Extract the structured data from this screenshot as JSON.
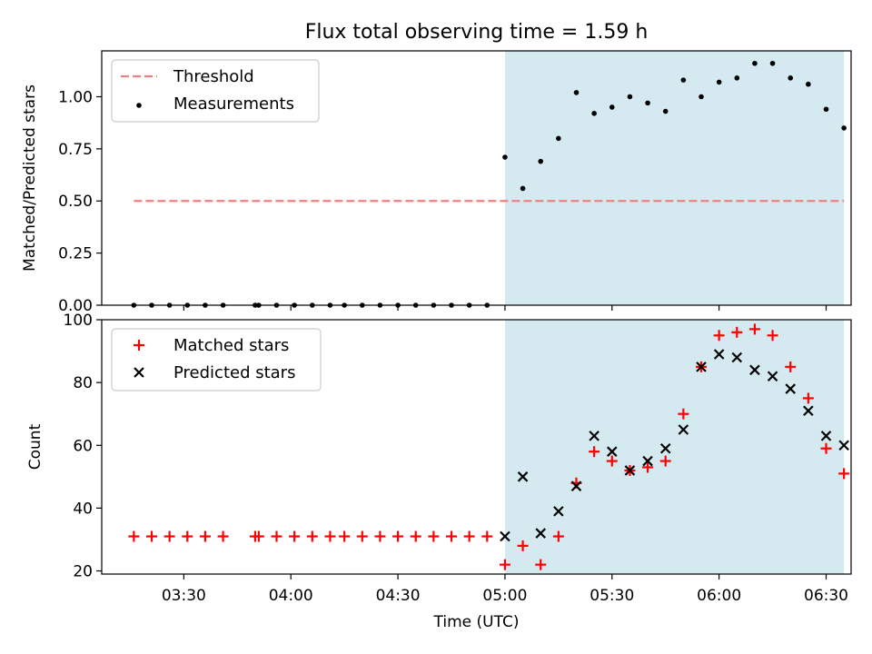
{
  "chart_data": [
    {
      "type": "scatter",
      "title": "Flux total observing time = 1.59 h",
      "xlabel": "",
      "ylabel": "Matched/Predicted stars",
      "ylim": [
        0,
        1.22
      ],
      "yticks": [
        "0.00",
        "0.25",
        "0.50",
        "0.75",
        "1.00"
      ],
      "xlim": [
        "03:07",
        "06:37"
      ],
      "highlight_span": {
        "start": "05:00",
        "end": "06:35",
        "color": "#d4eaf0"
      },
      "legend_position": "upper-left",
      "threshold": {
        "name": "Threshold",
        "y": 0.5,
        "x_start": "03:16",
        "x_end": "06:35",
        "color": "#f08080",
        "style": "dashed"
      },
      "series": [
        {
          "name": "Measurements",
          "color": "#000000",
          "marker": "dot",
          "x": [
            "03:16",
            "03:21",
            "03:26",
            "03:31",
            "03:36",
            "03:41",
            "03:50",
            "03:51",
            "03:56",
            "04:01",
            "04:06",
            "04:11",
            "04:15",
            "04:20",
            "04:25",
            "04:30",
            "04:35",
            "04:40",
            "04:45",
            "04:50",
            "04:55",
            "05:00",
            "05:05",
            "05:10",
            "05:15",
            "05:20",
            "05:25",
            "05:30",
            "05:35",
            "05:40",
            "05:45",
            "05:50",
            "05:55",
            "06:00",
            "06:05",
            "06:10",
            "06:15",
            "06:20",
            "06:25",
            "06:30",
            "06:35"
          ],
          "y": [
            0,
            0,
            0,
            0,
            0,
            0,
            0,
            0,
            0,
            0,
            0,
            0,
            0,
            0,
            0,
            0,
            0,
            0,
            0,
            0,
            0,
            0.71,
            0.56,
            0.69,
            0.8,
            1.02,
            0.92,
            0.95,
            1.0,
            0.97,
            0.93,
            1.08,
            1.0,
            1.07,
            1.09,
            1.16,
            1.16,
            1.09,
            1.06,
            0.94,
            0.85
          ]
        }
      ]
    },
    {
      "type": "scatter",
      "title": "",
      "xlabel": "Time (UTC)",
      "ylabel": "Count",
      "ylim": [
        19,
        100
      ],
      "yticks": [
        "20",
        "40",
        "60",
        "80",
        "100"
      ],
      "xlim": [
        "03:07",
        "06:37"
      ],
      "xticks": [
        "03:30",
        "04:00",
        "04:30",
        "05:00",
        "05:30",
        "06:00",
        "06:30"
      ],
      "highlight_span": {
        "start": "05:00",
        "end": "06:35",
        "color": "#d4eaf0"
      },
      "legend_position": "upper-left",
      "series": [
        {
          "name": "Matched stars",
          "color": "#ff0000",
          "marker": "plus",
          "x": [
            "03:16",
            "03:21",
            "03:26",
            "03:31",
            "03:36",
            "03:41",
            "03:50",
            "03:51",
            "03:56",
            "04:01",
            "04:06",
            "04:11",
            "04:15",
            "04:20",
            "04:25",
            "04:30",
            "04:35",
            "04:40",
            "04:45",
            "04:50",
            "04:55",
            "05:00",
            "05:05",
            "05:10",
            "05:15",
            "05:20",
            "05:25",
            "05:30",
            "05:35",
            "05:40",
            "05:45",
            "05:50",
            "05:55",
            "06:00",
            "06:05",
            "06:10",
            "06:15",
            "06:20",
            "06:25",
            "06:30",
            "06:35"
          ],
          "y": [
            31,
            31,
            31,
            31,
            31,
            31,
            31,
            31,
            31,
            31,
            31,
            31,
            31,
            31,
            31,
            31,
            31,
            31,
            31,
            31,
            31,
            22,
            28,
            22,
            31,
            48,
            58,
            55,
            52,
            53,
            55,
            70,
            85,
            95,
            96,
            97,
            95,
            85,
            75,
            59,
            51
          ]
        },
        {
          "name": "Predicted stars",
          "color": "#000000",
          "marker": "x",
          "x": [
            "05:00",
            "05:05",
            "05:10",
            "05:15",
            "05:20",
            "05:25",
            "05:30",
            "05:35",
            "05:40",
            "05:45",
            "05:50",
            "05:55",
            "06:00",
            "06:05",
            "06:10",
            "06:15",
            "06:20",
            "06:25",
            "06:30",
            "06:35"
          ],
          "y": [
            31,
            50,
            32,
            39,
            47,
            63,
            58,
            52,
            55,
            59,
            65,
            85,
            89,
            88,
            84,
            82,
            78,
            71,
            63,
            60
          ]
        }
      ]
    }
  ]
}
